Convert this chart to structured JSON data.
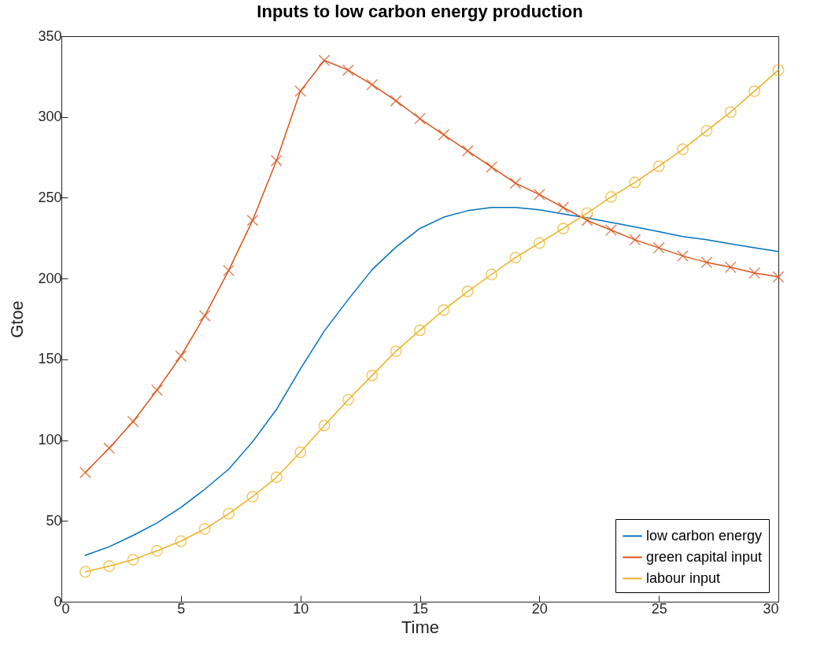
{
  "chart_data": {
    "type": "line",
    "title": "Inputs to low carbon energy production",
    "xlabel": "Time",
    "ylabel": "Gtoe",
    "x": [
      1,
      2,
      3,
      4,
      5,
      6,
      7,
      8,
      9,
      10,
      11,
      12,
      13,
      14,
      15,
      16,
      17,
      18,
      19,
      20,
      21,
      22,
      23,
      24,
      25,
      26,
      27,
      28,
      29,
      30
    ],
    "xlim": [
      0,
      30
    ],
    "xticks": [
      0,
      5,
      10,
      15,
      20,
      25,
      30
    ],
    "ylim": [
      0,
      350
    ],
    "yticks": [
      0,
      50,
      100,
      150,
      200,
      250,
      300,
      350
    ],
    "legend": "bottom right",
    "series": [
      {
        "name": "low carbon energy",
        "color": "#0072bd",
        "marker": "none",
        "values": [
          28.7,
          34,
          41,
          48.7,
          58.4,
          69.6,
          82,
          99,
          119,
          144,
          167.5,
          187,
          205.5,
          219.5,
          231,
          238,
          242,
          244,
          244,
          242.5,
          240,
          237.6,
          234.7,
          232,
          229,
          226,
          224,
          221.5,
          219,
          216.7
        ]
      },
      {
        "name": "green capital input",
        "color": "#d95319",
        "marker": "cross",
        "values": [
          80,
          95,
          111.5,
          131,
          152,
          177,
          205,
          236,
          273,
          316,
          335,
          329,
          320,
          310,
          299,
          289,
          279,
          269,
          259,
          252,
          244,
          236,
          230,
          224,
          219,
          214,
          210,
          207,
          203.5,
          201
        ]
      },
      {
        "name": "labour input",
        "color": "#edb120",
        "marker": "circle",
        "values": [
          18.5,
          22,
          26,
          31.5,
          37.5,
          45,
          54.5,
          65,
          77,
          92.5,
          109,
          125,
          140,
          155,
          168,
          180.5,
          192,
          202.5,
          213,
          222,
          231,
          240.5,
          250.5,
          259.5,
          269.5,
          280,
          291.5,
          303,
          316,
          329
        ]
      }
    ]
  }
}
